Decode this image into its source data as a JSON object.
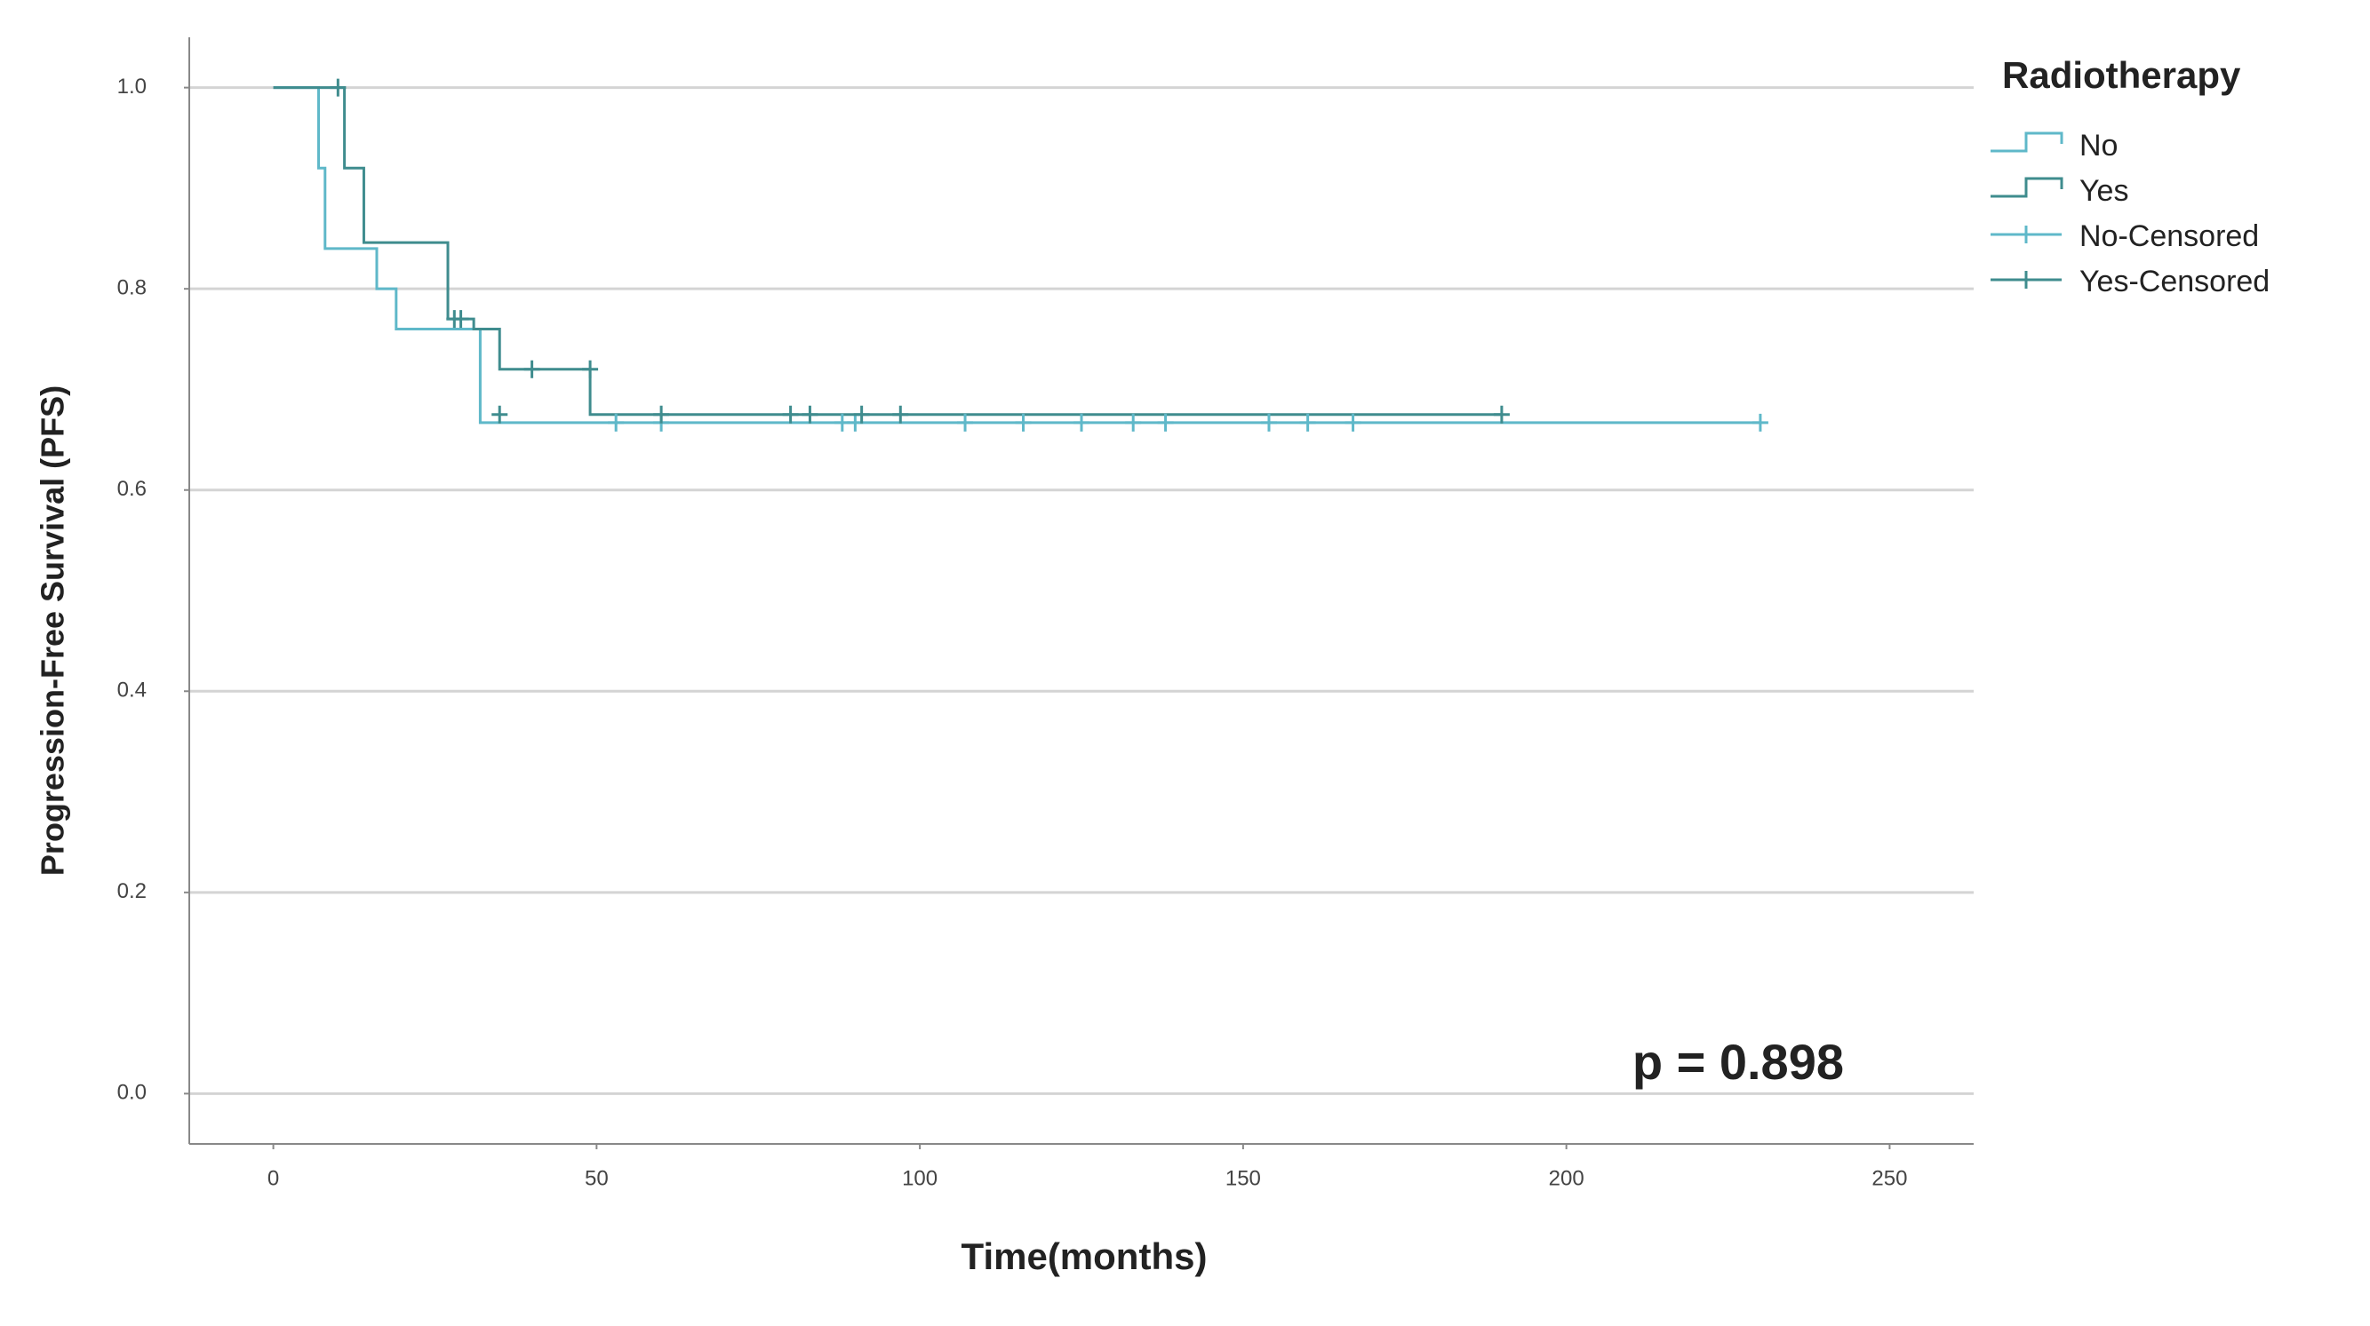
{
  "chart_data": {
    "type": "line",
    "step": true,
    "y_label": "Progression-Free Survival (PFS)",
    "x_label": "Time(months)",
    "annotation": "p = 0.898",
    "legend_title": "Radiotherapy",
    "legend_position": "right",
    "grid": true,
    "xlim": [
      -13,
      263
    ],
    "ylim": [
      -0.05,
      1.05
    ],
    "xticks": [
      0,
      50,
      100,
      150,
      200,
      250
    ],
    "yticks": [
      {
        "value": 0,
        "label": "0.0"
      },
      0.2,
      0.4,
      0.6,
      0.8,
      {
        "value": 1,
        "label": "1.0"
      }
    ],
    "series": [
      {
        "name": "No",
        "color": "#5fb8c9",
        "marker": "step",
        "x": [
          0,
          7,
          8,
          16,
          19,
          32,
          230
        ],
        "values": [
          1.0,
          0.92,
          0.84,
          0.8,
          0.76,
          0.667,
          0.667
        ]
      },
      {
        "name": "Yes",
        "color": "#3f8c8e",
        "marker": "step",
        "x": [
          0,
          11,
          14,
          27,
          31,
          35,
          49,
          190
        ],
        "values": [
          1.0,
          0.92,
          0.846,
          0.77,
          0.76,
          0.72,
          0.675,
          0.675
        ]
      },
      {
        "name": "No-Censored",
        "color": "#5fb8c9",
        "marker": "plus",
        "x": [
          53,
          60,
          88,
          90,
          107,
          116,
          125,
          133,
          138,
          154,
          160,
          167,
          230
        ],
        "values": [
          0.667,
          0.667,
          0.667,
          0.667,
          0.667,
          0.667,
          0.667,
          0.667,
          0.667,
          0.667,
          0.667,
          0.667,
          0.667
        ]
      },
      {
        "name": "Yes-Censored",
        "color": "#3f8c8e",
        "marker": "plus",
        "x": [
          10,
          28,
          29,
          35,
          40,
          49,
          60,
          80,
          83,
          91,
          97,
          190
        ],
        "values": [
          1.0,
          0.77,
          0.77,
          0.675,
          0.72,
          0.72,
          0.675,
          0.675,
          0.675,
          0.675,
          0.675,
          0.675
        ]
      }
    ]
  }
}
